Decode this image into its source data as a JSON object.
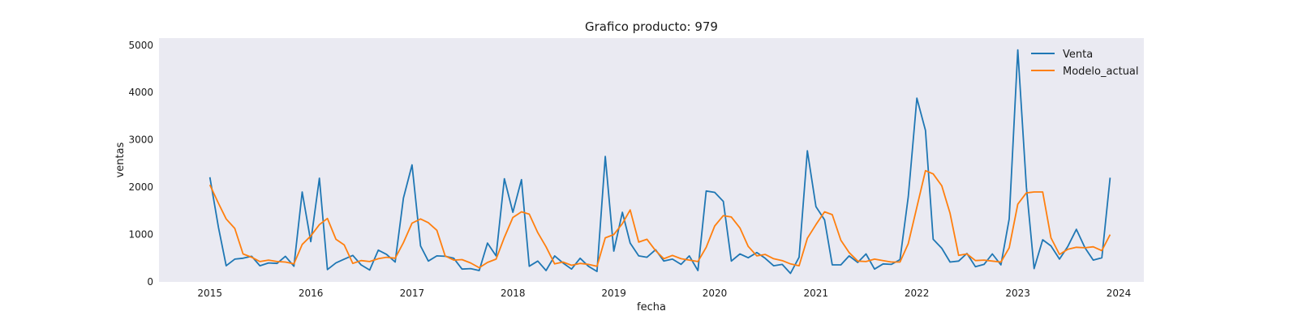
{
  "chart_data": {
    "type": "line",
    "title": "Grafico producto: 979",
    "xlabel": "fecha",
    "ylabel": "ventas",
    "x_range": [
      "2014-07-01",
      "2024-04-01"
    ],
    "ylim": [
      0,
      5150
    ],
    "x_ticks": [
      {
        "date": "2015-01-01",
        "label": "2015"
      },
      {
        "date": "2016-01-01",
        "label": "2016"
      },
      {
        "date": "2017-01-01",
        "label": "2017"
      },
      {
        "date": "2018-01-01",
        "label": "2018"
      },
      {
        "date": "2019-01-01",
        "label": "2019"
      },
      {
        "date": "2020-01-01",
        "label": "2020"
      },
      {
        "date": "2021-01-01",
        "label": "2021"
      },
      {
        "date": "2022-01-01",
        "label": "2022"
      },
      {
        "date": "2023-01-01",
        "label": "2023"
      },
      {
        "date": "2024-01-01",
        "label": "2024"
      }
    ],
    "y_ticks": [
      0,
      1000,
      2000,
      3000,
      4000,
      5000
    ],
    "grid": false,
    "legend_position": "top-right",
    "background_color": "#eaeaf2",
    "x": [
      "2015-01",
      "2015-02",
      "2015-03",
      "2015-04",
      "2015-05",
      "2015-06",
      "2015-07",
      "2015-08",
      "2015-09",
      "2015-10",
      "2015-11",
      "2015-12",
      "2016-01",
      "2016-02",
      "2016-03",
      "2016-04",
      "2016-05",
      "2016-06",
      "2016-07",
      "2016-08",
      "2016-09",
      "2016-10",
      "2016-11",
      "2016-12",
      "2017-01",
      "2017-02",
      "2017-03",
      "2017-04",
      "2017-05",
      "2017-06",
      "2017-07",
      "2017-08",
      "2017-09",
      "2017-10",
      "2017-11",
      "2017-12",
      "2018-01",
      "2018-02",
      "2018-03",
      "2018-04",
      "2018-05",
      "2018-06",
      "2018-07",
      "2018-08",
      "2018-09",
      "2018-10",
      "2018-11",
      "2018-12",
      "2019-01",
      "2019-02",
      "2019-03",
      "2019-04",
      "2019-05",
      "2019-06",
      "2019-07",
      "2019-08",
      "2019-09",
      "2019-10",
      "2019-11",
      "2019-12",
      "2020-01",
      "2020-02",
      "2020-03",
      "2020-04",
      "2020-05",
      "2020-06",
      "2020-07",
      "2020-08",
      "2020-09",
      "2020-10",
      "2020-11",
      "2020-12",
      "2021-01",
      "2021-02",
      "2021-03",
      "2021-04",
      "2021-05",
      "2021-06",
      "2021-07",
      "2021-08",
      "2021-09",
      "2021-10",
      "2021-11",
      "2021-12",
      "2022-01",
      "2022-02",
      "2022-03",
      "2022-04",
      "2022-05",
      "2022-06",
      "2022-07",
      "2022-08",
      "2022-09",
      "2022-10",
      "2022-11",
      "2022-12",
      "2023-01",
      "2023-02",
      "2023-03",
      "2023-04",
      "2023-05",
      "2023-06",
      "2023-07",
      "2023-08",
      "2023-09",
      "2023-10",
      "2023-11",
      "2023-12"
    ],
    "series": [
      {
        "name": "Venta",
        "color": "#1f77b4",
        "values": [
          2210,
          1150,
          340,
          480,
          500,
          540,
          340,
          400,
          390,
          540,
          330,
          1900,
          850,
          2190,
          260,
          400,
          480,
          560,
          360,
          250,
          670,
          580,
          420,
          1770,
          2470,
          760,
          440,
          550,
          540,
          500,
          270,
          280,
          240,
          820,
          550,
          2180,
          1470,
          2160,
          330,
          440,
          240,
          550,
          400,
          270,
          500,
          330,
          220,
          2650,
          650,
          1470,
          820,
          550,
          520,
          680,
          440,
          480,
          370,
          550,
          240,
          1920,
          1890,
          1700,
          440,
          590,
          510,
          620,
          500,
          340,
          370,
          180,
          520,
          2770,
          1590,
          1310,
          360,
          360,
          550,
          410,
          590,
          270,
          380,
          370,
          470,
          1800,
          3880,
          3200,
          900,
          710,
          420,
          440,
          600,
          320,
          370,
          590,
          360,
          1330,
          4900,
          2000,
          280,
          890,
          760,
          480,
          750,
          1110,
          720,
          460,
          510,
          2200
        ]
      },
      {
        "name": "Modelo_actual",
        "color": "#ff7f0e",
        "values": [
          2050,
          1660,
          1330,
          1130,
          590,
          520,
          430,
          460,
          430,
          420,
          380,
          790,
          970,
          1210,
          1340,
          900,
          780,
          390,
          450,
          430,
          490,
          520,
          500,
          830,
          1240,
          1330,
          1250,
          1090,
          550,
          460,
          470,
          400,
          300,
          410,
          480,
          940,
          1360,
          1480,
          1430,
          1040,
          740,
          380,
          420,
          350,
          390,
          370,
          330,
          930,
          1000,
          1230,
          1520,
          840,
          900,
          660,
          490,
          560,
          490,
          460,
          430,
          730,
          1180,
          1400,
          1370,
          1140,
          750,
          550,
          580,
          490,
          450,
          380,
          340,
          920,
          1210,
          1480,
          1420,
          880,
          620,
          440,
          430,
          480,
          450,
          420,
          420,
          810,
          1580,
          2350,
          2280,
          2030,
          1450,
          560,
          590,
          450,
          460,
          440,
          420,
          720,
          1640,
          1880,
          1900,
          1900,
          930,
          580,
          690,
          730,
          720,
          740,
          660,
          1000
        ]
      }
    ]
  }
}
